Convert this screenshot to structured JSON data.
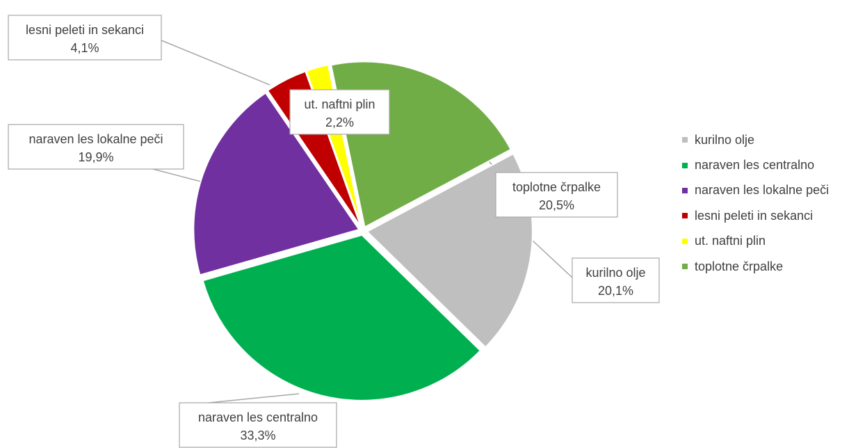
{
  "chart_data": {
    "type": "pie",
    "unit": "%",
    "slices": [
      {
        "label": "kurilno olje",
        "value": 20.1,
        "value_label": "20,1%",
        "color": "#bfbfbf"
      },
      {
        "label": "naraven les centralno",
        "value": 33.3,
        "value_label": "33,3%",
        "color": "#00b050"
      },
      {
        "label": "naraven les lokalne peči",
        "value": 19.9,
        "value_label": "19,9%",
        "color": "#7030a0"
      },
      {
        "label": "lesni peleti in sekanci",
        "value": 4.1,
        "value_label": "4,1%",
        "color": "#c00000"
      },
      {
        "label": "ut. naftni plin",
        "value": 2.2,
        "value_label": "2,2%",
        "color": "#ffff00"
      },
      {
        "label": "toplotne črpalke",
        "value": 20.5,
        "value_label": "20,5%",
        "color": "#70ad47"
      }
    ],
    "legend_position": "right",
    "exploded": true
  }
}
